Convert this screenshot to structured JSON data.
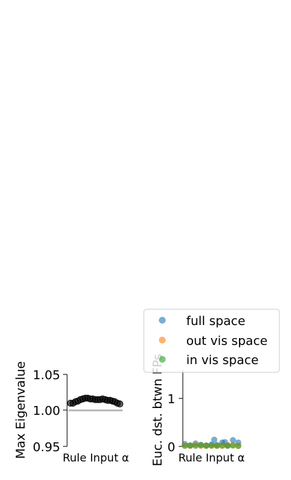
{
  "chart_data": [
    {
      "type": "scatter",
      "title": "",
      "xlabel": "Rule Input α",
      "ylabel": "Max Eigenvalue",
      "ylim": [
        0.95,
        1.05
      ],
      "yticks": [
        "0.95",
        "1.00",
        "1.05"
      ],
      "reference_line": 1.0,
      "series": [
        {
          "color": "#000000",
          "x": [
            0.0,
            0.05,
            0.1,
            0.15,
            0.2,
            0.25,
            0.3,
            0.35,
            0.4,
            0.45,
            0.5,
            0.55,
            0.6,
            0.65,
            0.7,
            0.75,
            0.8,
            0.85,
            0.9,
            0.95,
            1.0
          ],
          "y": [
            1.01,
            1.01,
            1.012,
            1.013,
            1.015,
            1.016,
            1.017,
            1.017,
            1.016,
            1.016,
            1.015,
            1.015,
            1.015,
            1.016,
            1.015,
            1.014,
            1.014,
            1.013,
            1.012,
            1.01,
            1.009
          ]
        }
      ],
      "colors": {
        "reference": "#b3b3b3"
      }
    },
    {
      "type": "scatter",
      "title": "",
      "xlabel": "Rule Input α",
      "ylabel": "Euc. dst. btwn FPs",
      "ylim": [
        0,
        1.5
      ],
      "yticks": [
        "0",
        "1"
      ],
      "legend_position": "top",
      "series": [
        {
          "name": "full space",
          "color": "#1f77b4",
          "x": [
            0.0,
            0.1,
            0.2,
            0.3,
            0.4,
            0.5,
            0.55,
            0.6,
            0.7,
            0.75,
            0.8,
            0.9,
            1.0
          ],
          "y": [
            0.05,
            0.02,
            0.06,
            0.03,
            0.02,
            0.04,
            0.14,
            0.03,
            0.08,
            0.09,
            0.02,
            0.13,
            0.08
          ]
        },
        {
          "name": "out vis space",
          "color": "#ff7f0e",
          "x": [
            0.0,
            0.1,
            0.2,
            0.3,
            0.4,
            0.5,
            0.6,
            0.7,
            0.8,
            0.9,
            1.0
          ],
          "y": [
            0.02,
            0.01,
            0.03,
            0.01,
            0.02,
            0.01,
            0.02,
            0.01,
            0.03,
            0.02,
            0.01
          ]
        },
        {
          "name": "in vis space",
          "color": "#2ca02c",
          "x": [
            0.0,
            0.1,
            0.2,
            0.3,
            0.4,
            0.5,
            0.6,
            0.7,
            0.8,
            0.9,
            1.0
          ],
          "y": [
            0.01,
            0.02,
            0.01,
            0.03,
            0.01,
            0.02,
            0.01,
            0.02,
            0.01,
            0.02,
            0.01
          ]
        }
      ]
    }
  ]
}
